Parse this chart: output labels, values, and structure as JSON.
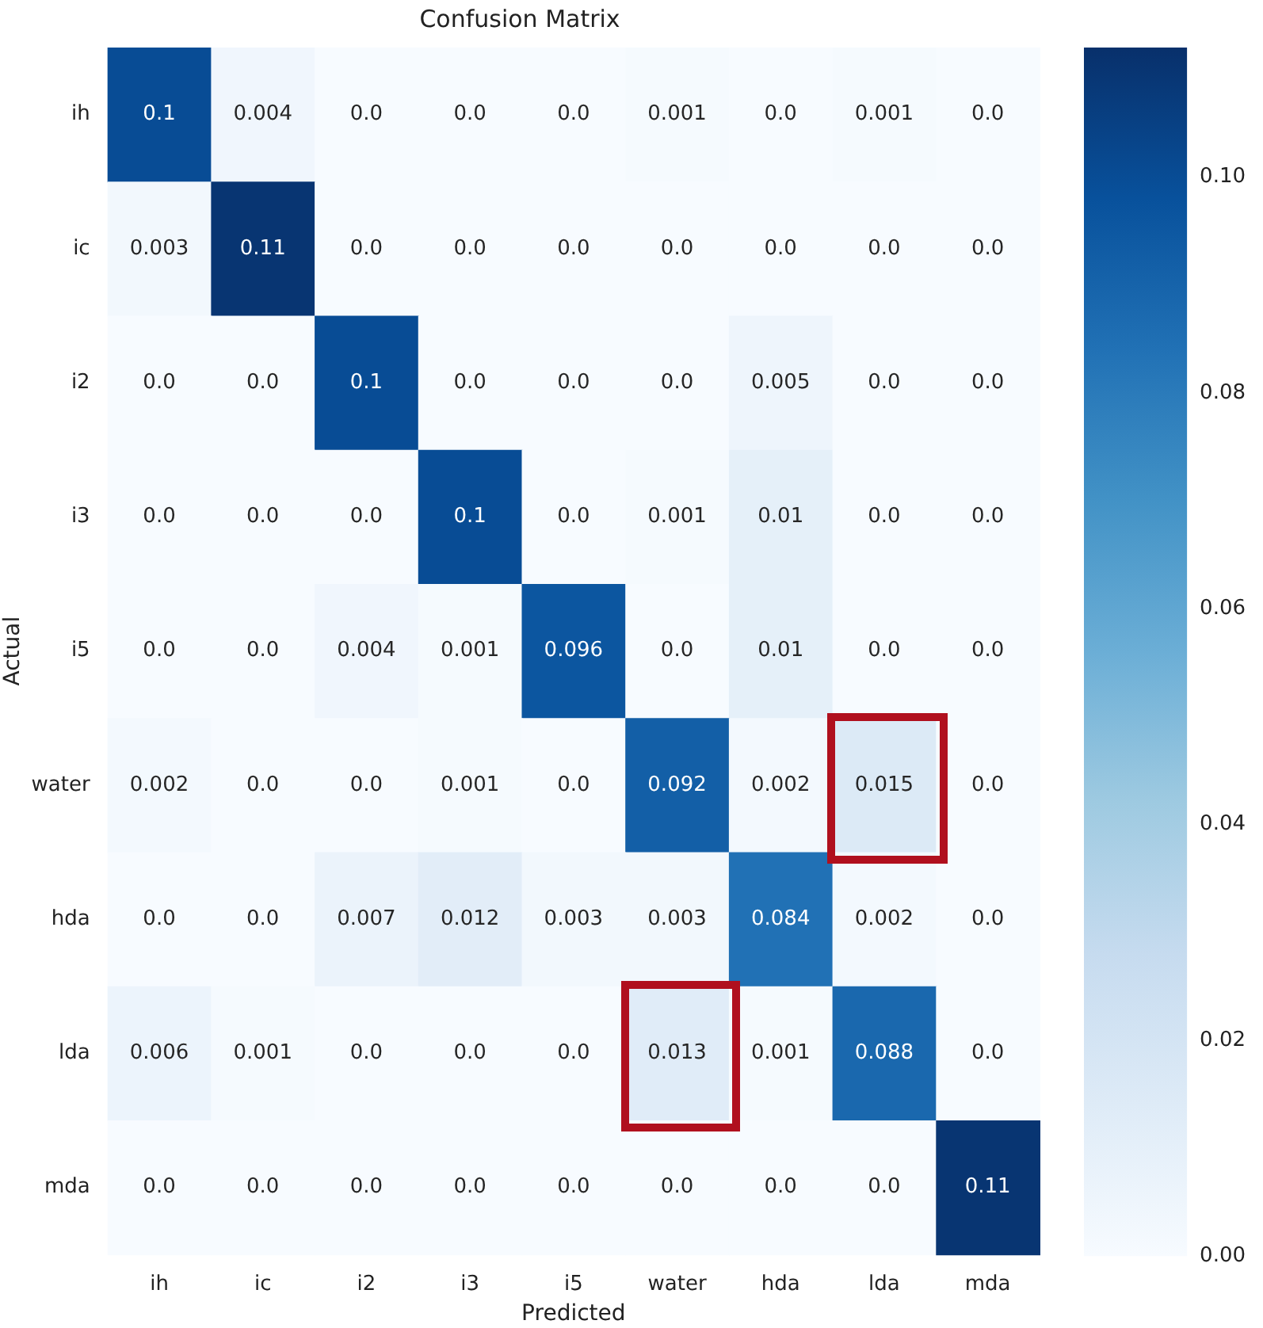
{
  "chart_data": {
    "type": "heatmap",
    "title": "Confusion Matrix",
    "xlabel": "Predicted",
    "ylabel": "Actual",
    "categories": [
      "ih",
      "ic",
      "i2",
      "i3",
      "i5",
      "water",
      "hda",
      "lda",
      "mda"
    ],
    "y_categories": [
      "ih",
      "ic",
      "i2",
      "i3",
      "i5",
      "water",
      "hda",
      "lda",
      "mda"
    ],
    "cells": [
      [
        0.1,
        0.004,
        0.0,
        0.0,
        0.0,
        0.001,
        0.0,
        0.001,
        0.0
      ],
      [
        0.003,
        0.11,
        0.0,
        0.0,
        0.0,
        0.0,
        0.0,
        0.0,
        0.0
      ],
      [
        0.0,
        0.0,
        0.1,
        0.0,
        0.0,
        0.0,
        0.005,
        0.0,
        0.0
      ],
      [
        0.0,
        0.0,
        0.0,
        0.1,
        0.0,
        0.001,
        0.01,
        0.0,
        0.0
      ],
      [
        0.0,
        0.0,
        0.004,
        0.001,
        0.096,
        0.0,
        0.01,
        0.0,
        0.0
      ],
      [
        0.002,
        0.0,
        0.0,
        0.001,
        0.0,
        0.092,
        0.002,
        0.015,
        0.0
      ],
      [
        0.0,
        0.0,
        0.007,
        0.012,
        0.003,
        0.003,
        0.084,
        0.002,
        0.0
      ],
      [
        0.006,
        0.001,
        0.0,
        0.0,
        0.0,
        0.013,
        0.001,
        0.088,
        0.0
      ],
      [
        0.0,
        0.0,
        0.0,
        0.0,
        0.0,
        0.0,
        0.0,
        0.0,
        0.11
      ]
    ],
    "cell_labels": [
      [
        "0.1",
        "0.004",
        "0.0",
        "0.0",
        "0.0",
        "0.001",
        "0.0",
        "0.001",
        "0.0"
      ],
      [
        "0.003",
        "0.11",
        "0.0",
        "0.0",
        "0.0",
        "0.0",
        "0.0",
        "0.0",
        "0.0"
      ],
      [
        "0.0",
        "0.0",
        "0.1",
        "0.0",
        "0.0",
        "0.0",
        "0.005",
        "0.0",
        "0.0"
      ],
      [
        "0.0",
        "0.0",
        "0.0",
        "0.1",
        "0.0",
        "0.001",
        "0.01",
        "0.0",
        "0.0"
      ],
      [
        "0.0",
        "0.0",
        "0.004",
        "0.001",
        "0.096",
        "0.0",
        "0.01",
        "0.0",
        "0.0"
      ],
      [
        "0.002",
        "0.0",
        "0.0",
        "0.001",
        "0.0",
        "0.092",
        "0.002",
        "0.015",
        "0.0"
      ],
      [
        "0.0",
        "0.0",
        "0.007",
        "0.012",
        "0.003",
        "0.003",
        "0.084",
        "0.002",
        "0.0"
      ],
      [
        "0.006",
        "0.001",
        "0.0",
        "0.0",
        "0.0",
        "0.013",
        "0.001",
        "0.088",
        "0.0"
      ],
      [
        "0.0",
        "0.0",
        "0.0",
        "0.0",
        "0.0",
        "0.0",
        "0.0",
        "0.0",
        "0.11"
      ]
    ],
    "clim": [
      0,
      0.112
    ],
    "cticks": [
      {
        "value": 0,
        "label": "0.00"
      },
      {
        "value": 0.02,
        "label": "0.02"
      },
      {
        "value": 0.04,
        "label": "0.04"
      },
      {
        "value": 0.06,
        "label": "0.06"
      },
      {
        "value": 0.08,
        "label": "0.08"
      },
      {
        "value": 0.1,
        "label": "0.10"
      }
    ]
  }
}
